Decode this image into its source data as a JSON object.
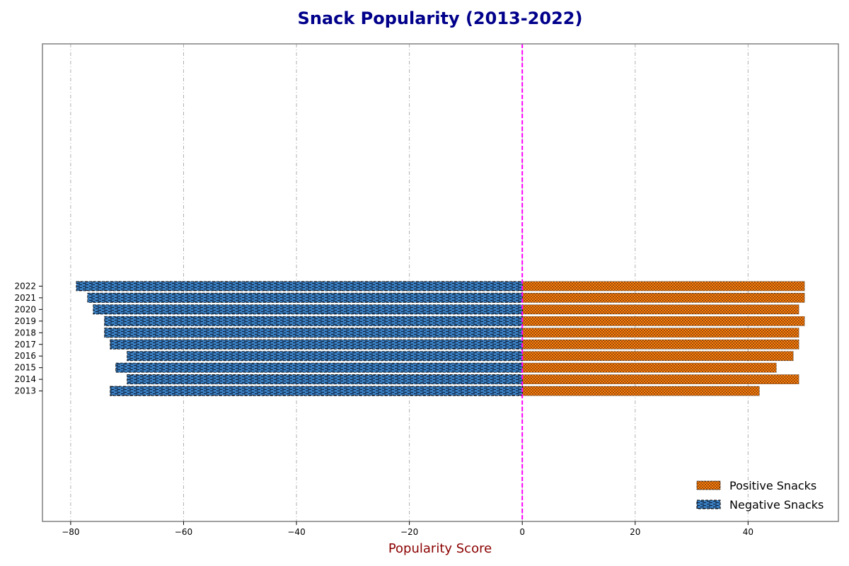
{
  "chart_data": {
    "type": "bar",
    "orientation": "horizontal",
    "title": "Snack Popularity (2013-2022)",
    "xlabel": "Popularity Score",
    "ylabel": "",
    "xlim": [
      -85,
      56
    ],
    "xticks": [
      -80,
      -60,
      -40,
      -20,
      0,
      20,
      40
    ],
    "grid": "x-dashed",
    "reference_line": {
      "x": 0,
      "style": "dashed"
    },
    "legend_position": "lower-right",
    "categories": [
      "2013",
      "2014",
      "2015",
      "2016",
      "2017",
      "2018",
      "2019",
      "2020",
      "2021",
      "2022"
    ],
    "series": [
      {
        "name": "Positive Snacks",
        "values": [
          42,
          49,
          45,
          48,
          49,
          49,
          50,
          49,
          50,
          50
        ]
      },
      {
        "name": "Negative Snacks",
        "values": [
          -73,
          -70,
          -72,
          -70,
          -73,
          -74,
          -74,
          -76,
          -77,
          -79
        ]
      }
    ]
  },
  "colors": {
    "positive": "#ff7f0e",
    "negative": "#3a7fc1",
    "title": "#00008b",
    "xlabel": "#8b0000",
    "zero_line": "#ff00ff",
    "grid": "#b0b0b0",
    "frame": "#808080"
  }
}
